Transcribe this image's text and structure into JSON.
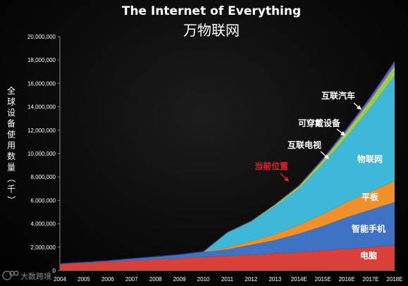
{
  "title_en": "The Internet of Everything",
  "title_cn": "万物联网",
  "watermark": "大数跨境",
  "current_position_label": "当前位置",
  "chart_data": {
    "type": "area",
    "stacked": true,
    "title": "The Internet of Everything",
    "subtitle": "万物联网",
    "ylabel": "全球设备使用数量（千）",
    "xlabel": "",
    "ylim": [
      0,
      20000000
    ],
    "yticks": [
      0,
      2000000,
      4000000,
      6000000,
      8000000,
      10000000,
      12000000,
      14000000,
      16000000,
      18000000,
      20000000
    ],
    "ytick_labels": [
      "0",
      "2,000,000",
      "4,000,000",
      "6,000,000",
      "8,000,000",
      "10,000,000",
      "12,000,000",
      "14,000,000",
      "16,000,000",
      "18,000,000",
      "20,000,000"
    ],
    "x": [
      "2004",
      "2005",
      "2006",
      "2007",
      "2008",
      "2009",
      "2010",
      "2011",
      "2012",
      "2013",
      "2014E",
      "2015E",
      "2016E",
      "2017E",
      "2018E"
    ],
    "grid": false,
    "series": [
      {
        "name": "电脑",
        "color": "#d9403a",
        "values": [
          550000,
          650000,
          750000,
          850000,
          950000,
          1050000,
          1150000,
          1250000,
          1350000,
          1450000,
          1550000,
          1700000,
          1850000,
          2000000,
          2150000
        ]
      },
      {
        "name": "智能手机",
        "color": "#3d72c4",
        "values": [
          50000,
          70000,
          100000,
          180000,
          250000,
          330000,
          430000,
          550000,
          850000,
          1150000,
          1600000,
          2100000,
          2700000,
          3200000,
          3700000
        ]
      },
      {
        "name": "平板",
        "color": "#f0902a",
        "values": [
          0,
          0,
          0,
          0,
          0,
          0,
          50000,
          150000,
          300000,
          500000,
          750000,
          1000000,
          1300000,
          1550000,
          1800000
        ]
      },
      {
        "name": "物联网",
        "color": "#3fb7d8",
        "values": [
          0,
          0,
          0,
          0,
          0,
          0,
          0,
          1300000,
          1650000,
          2400000,
          3100000,
          4300000,
          5600000,
          7200000,
          9000000
        ]
      },
      {
        "name": "可穿戴设备",
        "color": "#9acd4a",
        "values": [
          0,
          0,
          0,
          0,
          0,
          0,
          0,
          20000,
          60000,
          120000,
          200000,
          330000,
          480000,
          650000,
          850000
        ]
      },
      {
        "name": "互联汽车",
        "color": "#7060c0",
        "values": [
          0,
          0,
          0,
          0,
          0,
          0,
          0,
          10000,
          30000,
          60000,
          100000,
          150000,
          220000,
          300000,
          400000
        ]
      }
    ],
    "callout_labels": [
      "互联汽车",
      "可穿戴设备",
      "互联电视"
    ],
    "band_labels": [
      "物联网",
      "平板",
      "智能手机",
      "电脑"
    ],
    "annotation": "当前位置"
  }
}
